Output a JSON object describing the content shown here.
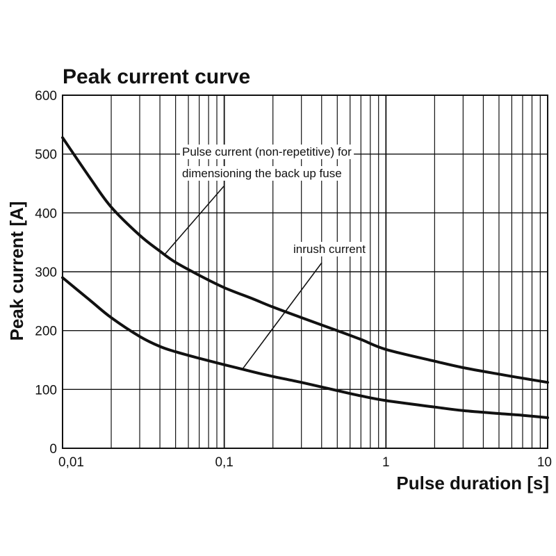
{
  "chart_data": {
    "type": "line",
    "title": "Peak current curve",
    "xlabel": "Pulse duration [s]",
    "ylabel": "Peak current [A]",
    "xscale": "log",
    "xlim": [
      0.01,
      10
    ],
    "ylim": [
      0,
      600
    ],
    "grid": true,
    "x_tick_labels": [
      {
        "value": 0.01,
        "label": "0,01"
      },
      {
        "value": 0.1,
        "label": "0,1"
      },
      {
        "value": 1,
        "label": "1"
      },
      {
        "value": 10,
        "label": "10"
      }
    ],
    "y_ticks": [
      0,
      100,
      200,
      300,
      400,
      500,
      600
    ],
    "series": [
      {
        "name": "Pulse current (non-repetitive) for dimensioning the back up fuse",
        "x": [
          0.01,
          0.015,
          0.02,
          0.03,
          0.04,
          0.05,
          0.07,
          0.1,
          0.15,
          0.2,
          0.3,
          0.5,
          0.7,
          1,
          2,
          3,
          5,
          7,
          10
        ],
        "y": [
          528,
          457,
          410,
          362,
          335,
          316,
          294,
          273,
          254,
          240,
          222,
          200,
          185,
          168,
          148,
          137,
          126,
          119,
          112
        ]
      },
      {
        "name": "inrush current",
        "x": [
          0.01,
          0.015,
          0.02,
          0.03,
          0.04,
          0.05,
          0.07,
          0.1,
          0.15,
          0.2,
          0.3,
          0.5,
          0.7,
          1,
          2,
          3,
          5,
          7,
          10
        ],
        "y": [
          290,
          250,
          222,
          190,
          173,
          164,
          153,
          142,
          130,
          122,
          112,
          98,
          89,
          81,
          70,
          64,
          59,
          56,
          52
        ]
      }
    ],
    "annotations": [
      {
        "lines": [
          "Pulse current (non-repetitive) for",
          "dimensioning the back up fuse"
        ],
        "series_index": 0,
        "leader_to": {
          "x": 0.043,
          "y": 330
        }
      },
      {
        "lines": [
          "inrush current"
        ],
        "series_index": 1,
        "leader_to": {
          "x": 0.13,
          "y": 135
        }
      }
    ],
    "colors": {
      "line": "#111111",
      "grid": "#111111",
      "background": "#ffffff"
    }
  }
}
